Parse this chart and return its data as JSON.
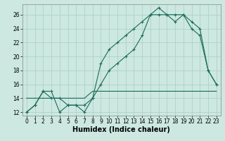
{
  "xlabel": "Humidex (Indice chaleur)",
  "background_color": "#cce8e0",
  "grid_color": "#aaccC4",
  "line_color": "#1a6b5a",
  "xlim": [
    -0.5,
    23.5
  ],
  "ylim": [
    11.5,
    27.5
  ],
  "xticks": [
    0,
    1,
    2,
    3,
    4,
    5,
    6,
    7,
    8,
    9,
    10,
    11,
    12,
    13,
    14,
    15,
    16,
    17,
    18,
    19,
    20,
    21,
    22,
    23
  ],
  "yticks": [
    12,
    14,
    16,
    18,
    20,
    22,
    24,
    26
  ],
  "line1_x": [
    0,
    1,
    2,
    3,
    4,
    5,
    6,
    7,
    8,
    9,
    10,
    11,
    12,
    13,
    14,
    15,
    16,
    17,
    18,
    19,
    20,
    21,
    22,
    23
  ],
  "line1_y": [
    12,
    13,
    15,
    15,
    12,
    13,
    13,
    12,
    14,
    19,
    21,
    22,
    23,
    24,
    25,
    26,
    27,
    26,
    26,
    26,
    24,
    23,
    18,
    16
  ],
  "line2_x": [
    0,
    1,
    2,
    3,
    4,
    5,
    6,
    7,
    8,
    9,
    10,
    11,
    12,
    13,
    14,
    15,
    16,
    17,
    18,
    19,
    20,
    21,
    22,
    23
  ],
  "line2_y": [
    12,
    13,
    15,
    14,
    14,
    13,
    13,
    13,
    14,
    16,
    18,
    19,
    20,
    21,
    23,
    26,
    26,
    26,
    25,
    26,
    25,
    24,
    18,
    16
  ],
  "line3_x": [
    0,
    1,
    2,
    3,
    4,
    5,
    6,
    7,
    8,
    9,
    10,
    11,
    12,
    13,
    14,
    15,
    16,
    17,
    18,
    19,
    20,
    21,
    22,
    23
  ],
  "line3_y": [
    14,
    14,
    14,
    14,
    14,
    14,
    14,
    14,
    15,
    15,
    15,
    15,
    15,
    15,
    15,
    15,
    15,
    15,
    15,
    15,
    15,
    15,
    15,
    15
  ],
  "markersize": 3,
  "linewidth": 0.8,
  "tick_fontsize": 5.5,
  "label_fontsize": 7.0
}
